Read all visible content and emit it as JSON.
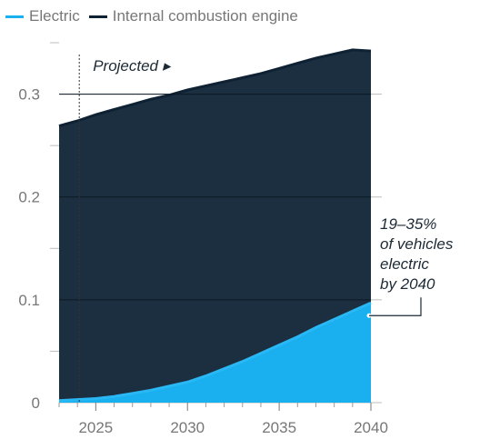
{
  "legend": {
    "items": [
      {
        "name": "Electric",
        "color": "#1ab0f0"
      },
      {
        "name": "Internal combustion engine",
        "color": "#0f2233"
      }
    ]
  },
  "chart_data": {
    "type": "area",
    "stacked": true,
    "x": [
      2023,
      2024,
      2025,
      2026,
      2027,
      2028,
      2029,
      2030,
      2031,
      2032,
      2033,
      2034,
      2035,
      2036,
      2037,
      2038,
      2039,
      2040
    ],
    "series": [
      {
        "name": "Electric",
        "color": "#1ab0f0",
        "values": [
          0.002,
          0.003,
          0.004,
          0.006,
          0.009,
          0.012,
          0.016,
          0.02,
          0.026,
          0.033,
          0.04,
          0.048,
          0.056,
          0.064,
          0.073,
          0.081,
          0.089,
          0.097
        ]
      },
      {
        "name": "Internal combustion engine",
        "color": "#1c2f40",
        "values": [
          0.267,
          0.271,
          0.276,
          0.279,
          0.281,
          0.283,
          0.283,
          0.284,
          0.282,
          0.279,
          0.276,
          0.272,
          0.269,
          0.266,
          0.262,
          0.258,
          0.254,
          0.245
        ]
      }
    ],
    "xlim": [
      2023,
      2040
    ],
    "ylim": [
      0,
      0.35
    ],
    "x_ticks": [
      "2025",
      "2030",
      "2035",
      "2040"
    ],
    "x_tick_values": [
      2025,
      2030,
      2035,
      2040
    ],
    "y_ticks": [
      "0",
      "0.1",
      "0.2",
      "0.3"
    ],
    "y_tick_values": [
      0,
      0.1,
      0.2,
      0.3
    ],
    "grid": true,
    "legend_position": "top-left",
    "projection": {
      "label": "Projected ▸",
      "x": 2024.1
    },
    "annotation": {
      "lines": [
        "19–35%",
        "of vehicles",
        "electric",
        "by 2040"
      ],
      "x": 2040,
      "y": 0.097
    }
  }
}
